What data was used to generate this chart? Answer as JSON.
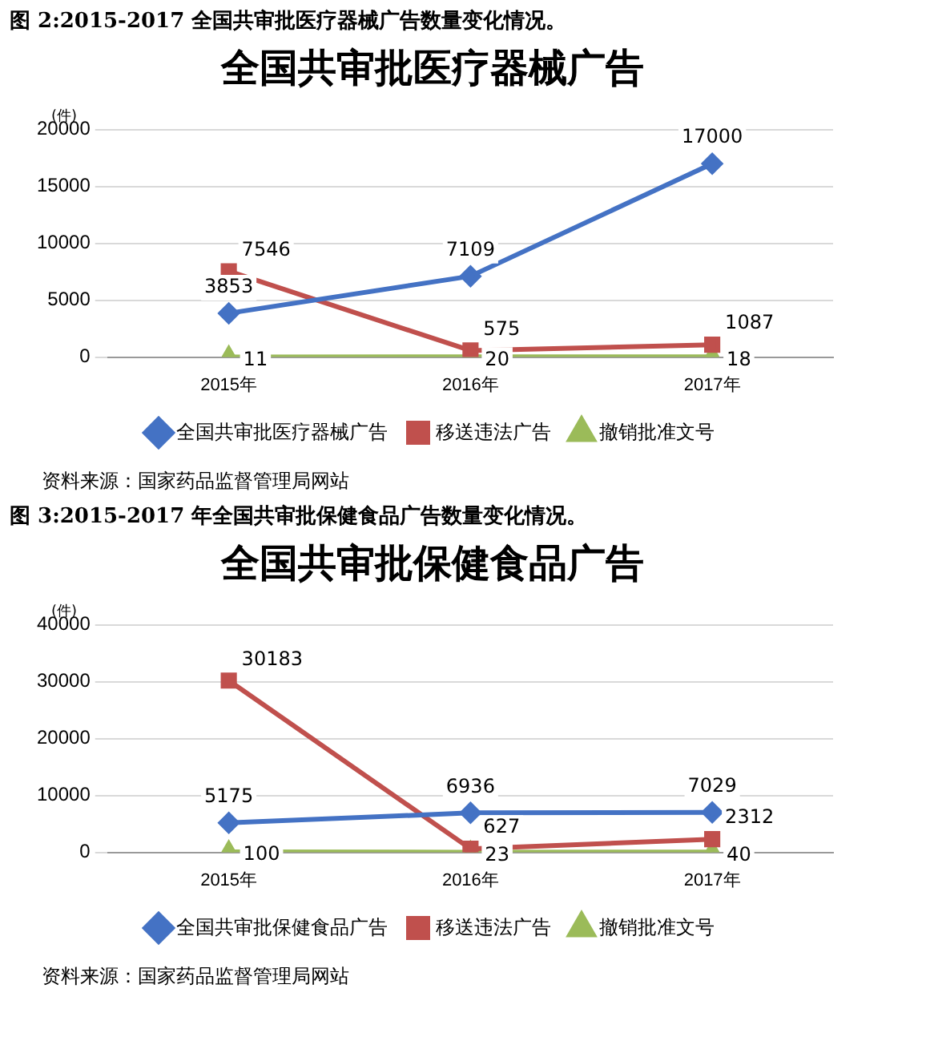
{
  "chart_data": [
    {
      "type": "line",
      "title": "全国共审批医疗器械广告",
      "ylabel": "(件)",
      "categories": [
        "2015年",
        "2016年",
        "2017年"
      ],
      "ylim": [
        0,
        20000
      ],
      "yticks": [
        0,
        5000,
        10000,
        15000,
        20000
      ],
      "grid": "y",
      "legend": "bottom",
      "data_labels": true,
      "annotations": [
        "图 2:2015-2017 全国共审批医疗器械广告数量变化情况。",
        "资料来源：国家药品监督管理局网站"
      ],
      "series": [
        {
          "name": "全国共审批医疗器械广告",
          "color": "#4472c4",
          "marker": "diamond",
          "values": [
            3853,
            7109,
            17000
          ]
        },
        {
          "name": "移送违法广告",
          "color": "#c0504d",
          "marker": "square",
          "values": [
            7546,
            575,
            1087
          ]
        },
        {
          "name": "撤销批准文号",
          "color": "#9bbb59",
          "marker": "triangle",
          "values": [
            11,
            20,
            18
          ]
        }
      ]
    },
    {
      "type": "line",
      "title": "全国共审批保健食品广告",
      "ylabel": "(件)",
      "categories": [
        "2015年",
        "2016年",
        "2017年"
      ],
      "ylim": [
        0,
        40000
      ],
      "yticks": [
        0,
        10000,
        20000,
        30000,
        40000
      ],
      "grid": "y",
      "legend": "bottom",
      "data_labels": true,
      "annotations": [
        "图 3:2015-2017 年全国共审批保健食品广告数量变化情况。",
        "资料来源：国家药品监督管理局网站"
      ],
      "series": [
        {
          "name": "全国共审批保健食品广告",
          "color": "#4472c4",
          "marker": "diamond",
          "values": [
            5175,
            6936,
            7029
          ]
        },
        {
          "name": "移送违法广告",
          "color": "#c0504d",
          "marker": "square",
          "values": [
            30183,
            627,
            2312
          ]
        },
        {
          "name": "撤销批准文号",
          "color": "#9bbb59",
          "marker": "triangle",
          "values": [
            100,
            23,
            40
          ]
        }
      ]
    }
  ]
}
